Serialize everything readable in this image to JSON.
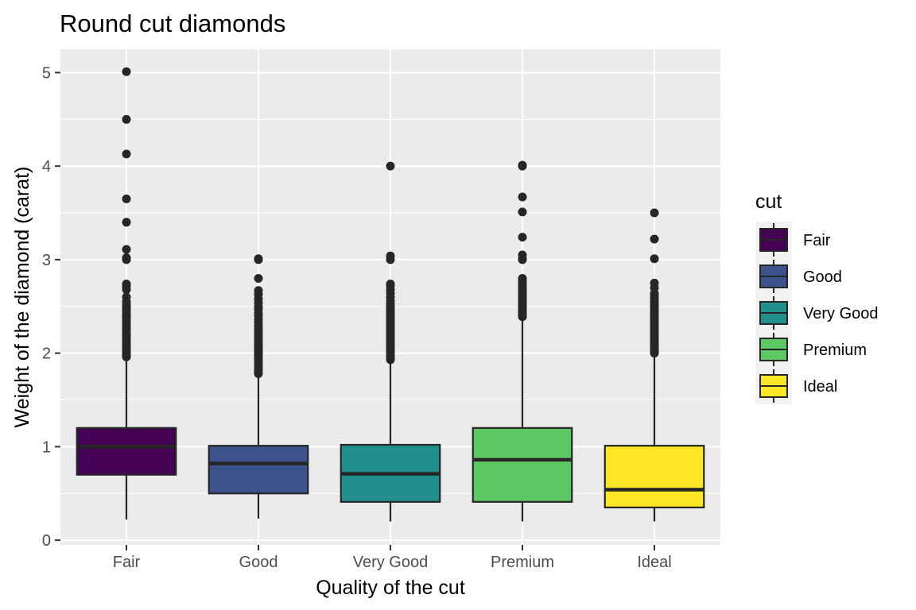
{
  "chart_data": {
    "type": "boxplot",
    "title": "Round cut diamonds",
    "xlabel": "Quality of the cut",
    "ylabel": "Weight of the diamond (carat)",
    "ylim": [
      -0.05,
      5.25
    ],
    "yticks": [
      0,
      1,
      2,
      3,
      4,
      5
    ],
    "grid": true,
    "legend": {
      "title": "cut",
      "position": "right"
    },
    "categories": [
      "Fair",
      "Good",
      "Very Good",
      "Premium",
      "Ideal"
    ],
    "colors": [
      "#440154",
      "#3B528B",
      "#21908C",
      "#5DC863",
      "#FDE725"
    ],
    "boxes": [
      {
        "name": "Fair",
        "whisker_low": 0.22,
        "q1": 0.7,
        "median": 1.0,
        "q3": 1.2,
        "whisker_high": 1.95,
        "outliers": [
          1.96,
          1.98,
          2.0,
          2.01,
          2.02,
          2.03,
          2.05,
          2.07,
          2.1,
          2.12,
          2.15,
          2.18,
          2.2,
          2.22,
          2.25,
          2.28,
          2.3,
          2.32,
          2.35,
          2.38,
          2.4,
          2.42,
          2.45,
          2.48,
          2.5,
          2.52,
          2.55,
          2.6,
          2.68,
          2.71,
          2.74,
          3.0,
          3.02,
          3.11,
          3.4,
          3.65,
          4.13,
          4.5,
          5.01
        ]
      },
      {
        "name": "Good",
        "whisker_low": 0.23,
        "q1": 0.5,
        "median": 0.82,
        "q3": 1.01,
        "whisker_high": 1.76,
        "outliers": [
          1.78,
          1.8,
          1.82,
          1.85,
          1.88,
          1.9,
          1.93,
          1.95,
          1.98,
          2.0,
          2.01,
          2.02,
          2.04,
          2.06,
          2.08,
          2.1,
          2.12,
          2.14,
          2.17,
          2.2,
          2.22,
          2.25,
          2.28,
          2.3,
          2.33,
          2.36,
          2.4,
          2.43,
          2.47,
          2.5,
          2.54,
          2.58,
          2.63,
          2.67,
          2.8,
          3.0,
          3.01
        ]
      },
      {
        "name": "Very Good",
        "whisker_low": 0.2,
        "q1": 0.41,
        "median": 0.71,
        "q3": 1.02,
        "whisker_high": 1.92,
        "outliers": [
          1.93,
          1.95,
          1.97,
          2.0,
          2.02,
          2.04,
          2.06,
          2.08,
          2.1,
          2.12,
          2.14,
          2.16,
          2.18,
          2.2,
          2.22,
          2.24,
          2.26,
          2.28,
          2.3,
          2.32,
          2.34,
          2.36,
          2.38,
          2.4,
          2.42,
          2.44,
          2.46,
          2.48,
          2.5,
          2.53,
          2.56,
          2.6,
          2.64,
          2.68,
          2.72,
          2.74,
          3.0,
          3.04,
          4.0
        ]
      },
      {
        "name": "Premium",
        "whisker_low": 0.2,
        "q1": 0.41,
        "median": 0.86,
        "q3": 1.2,
        "whisker_high": 2.38,
        "outliers": [
          2.39,
          2.4,
          2.42,
          2.44,
          2.46,
          2.48,
          2.5,
          2.52,
          2.54,
          2.56,
          2.58,
          2.6,
          2.62,
          2.64,
          2.66,
          2.68,
          2.7,
          2.72,
          2.74,
          2.77,
          2.8,
          3.0,
          3.01,
          3.05,
          3.24,
          3.51,
          3.67,
          4.0,
          4.01
        ]
      },
      {
        "name": "Ideal",
        "whisker_low": 0.2,
        "q1": 0.35,
        "median": 0.54,
        "q3": 1.01,
        "whisker_high": 1.99,
        "outliers": [
          2.0,
          2.01,
          2.02,
          2.03,
          2.04,
          2.05,
          2.06,
          2.08,
          2.1,
          2.12,
          2.14,
          2.16,
          2.18,
          2.2,
          2.22,
          2.24,
          2.26,
          2.28,
          2.3,
          2.32,
          2.34,
          2.36,
          2.38,
          2.4,
          2.42,
          2.44,
          2.46,
          2.48,
          2.5,
          2.52,
          2.55,
          2.58,
          2.61,
          2.64,
          2.7,
          2.75,
          3.01,
          3.22,
          3.5
        ]
      }
    ]
  }
}
